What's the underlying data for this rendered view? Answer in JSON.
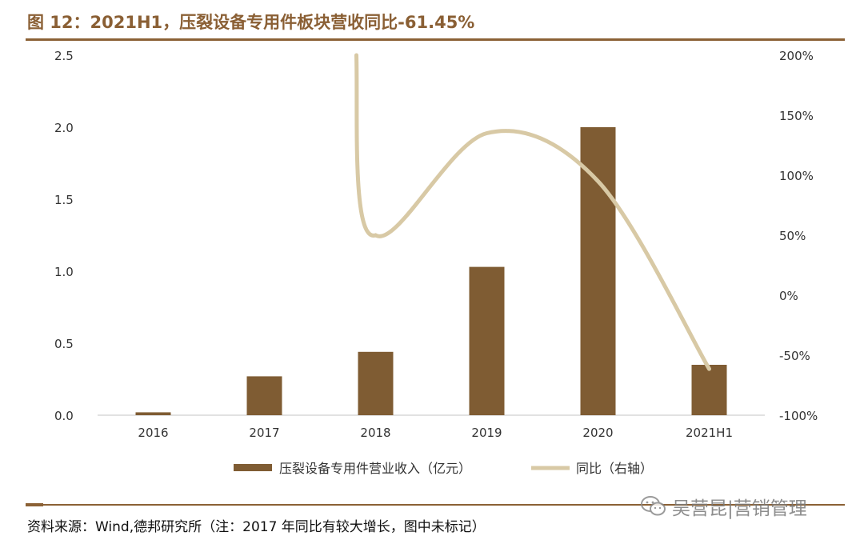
{
  "title": "图 12：2021H1，压裂设备专用件板块营收同比-61.45%",
  "source": "资料来源：Wind,德邦研究所（注：2017 年同比有较大增长，图中未标记）",
  "watermark": "吴营昆|营销管理",
  "colors": {
    "bar": "#7f5c33",
    "line": "#d8c9a5",
    "accent": "#8b6135"
  },
  "chart_data": {
    "type": "bar",
    "categories": [
      "2016",
      "2017",
      "2018",
      "2019",
      "2020",
      "2021H1"
    ],
    "series": [
      {
        "name": "压裂设备专用件营业收入（亿元）",
        "type": "bar",
        "axis": "left",
        "values": [
          0.02,
          0.27,
          0.44,
          1.03,
          2.0,
          0.35
        ]
      },
      {
        "name": "同比（右轴）",
        "type": "line",
        "axis": "right",
        "smooth": true,
        "values": [
          null,
          null,
          50,
          135,
          95,
          -61.45
        ],
        "note": "2017 value off-scale, curve enters from top near 2018"
      }
    ],
    "y_left": {
      "min": 0,
      "max": 2.5,
      "ticks": [
        "0.0",
        "0.5",
        "1.0",
        "1.5",
        "2.0",
        "2.5"
      ]
    },
    "y_right": {
      "min": -100,
      "max": 200,
      "ticks": [
        "-100%",
        "-50%",
        "0%",
        "50%",
        "100%",
        "150%",
        "200%"
      ]
    },
    "grid": false,
    "legend_position": "bottom"
  }
}
